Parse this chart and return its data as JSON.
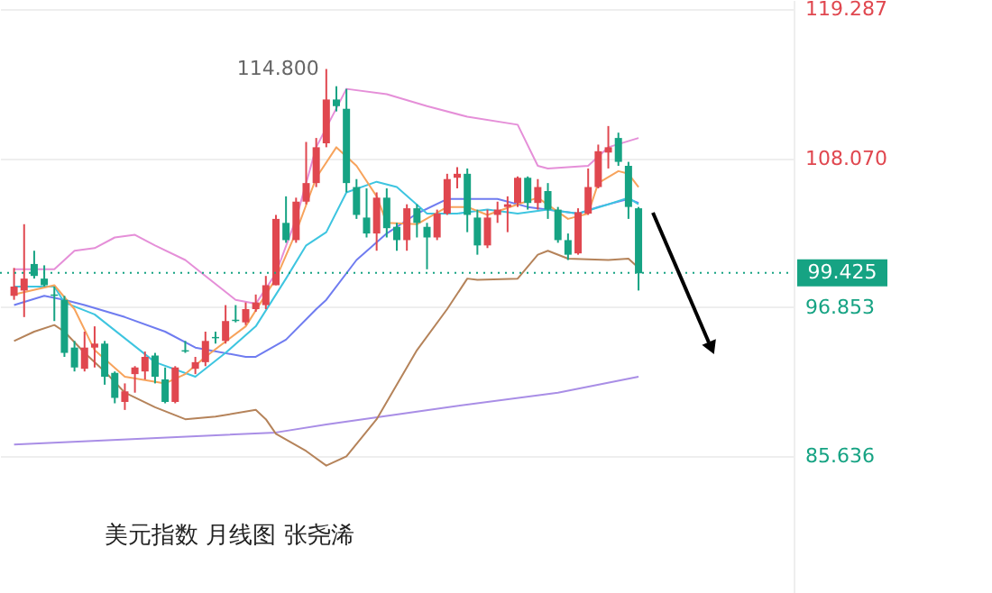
{
  "chart_data": {
    "type": "candlestick",
    "title": "美元指数 月线图 张尧浠",
    "categories": [
      null,
      null,
      null,
      null,
      null,
      null,
      null,
      null,
      null,
      null,
      null,
      null,
      null,
      null,
      null,
      null,
      null,
      null,
      null,
      null,
      null,
      null,
      null,
      null,
      null,
      null,
      null,
      null,
      null,
      null,
      null,
      null,
      null,
      null,
      null,
      null,
      null,
      null,
      null,
      null,
      null,
      null,
      null,
      null,
      null,
      null,
      null,
      null,
      null,
      null,
      null,
      null,
      null,
      null,
      null,
      null,
      null,
      null,
      null,
      null,
      null,
      null,
      null,
      null,
      null,
      null,
      null,
      null,
      null,
      null,
      null,
      null,
      null,
      null,
      null,
      null,
      null
    ],
    "ohlc": [
      [
        97.7,
        99.8,
        97.4,
        98.4
      ],
      [
        98.1,
        103.1,
        96.1,
        99.0
      ],
      [
        100.1,
        101.1,
        99.0,
        99.2
      ],
      [
        99.0,
        100.0,
        98.4,
        98.5
      ],
      [
        97.8,
        98.4,
        95.8,
        97.7
      ],
      [
        97.4,
        97.7,
        93.1,
        93.4
      ],
      [
        93.8,
        94.3,
        92.0,
        92.3
      ],
      [
        92.2,
        95.0,
        92.0,
        93.8
      ],
      [
        93.8,
        95.4,
        92.3,
        94.1
      ],
      [
        94.1,
        94.3,
        91.0,
        91.6
      ],
      [
        91.9,
        92.0,
        89.6,
        90.0
      ],
      [
        89.7,
        91.1,
        89.1,
        90.5
      ],
      [
        91.8,
        92.4,
        90.4,
        92.3
      ],
      [
        92.0,
        93.5,
        91.4,
        93.1
      ],
      [
        93.2,
        93.4,
        91.1,
        91.6
      ],
      [
        91.4,
        92.3,
        89.6,
        89.7
      ],
      [
        89.7,
        92.4,
        89.6,
        92.3
      ],
      [
        93.6,
        94.3,
        93.4,
        93.5
      ],
      [
        92.2,
        93.1,
        91.8,
        92.7
      ],
      [
        92.7,
        95.0,
        92.4,
        94.3
      ],
      [
        94.6,
        95.0,
        94.1,
        94.5
      ],
      [
        94.3,
        97.0,
        94.1,
        95.8
      ],
      [
        95.9,
        97.0,
        95.7,
        95.8
      ],
      [
        95.7,
        97.2,
        95.5,
        96.7
      ],
      [
        96.7,
        97.8,
        96.5,
        97.2
      ],
      [
        97.0,
        99.2,
        96.7,
        98.5
      ],
      [
        98.5,
        103.8,
        98.5,
        103.5
      ],
      [
        103.2,
        105.2,
        101.7,
        101.9
      ],
      [
        101.9,
        105.1,
        101.7,
        104.8
      ],
      [
        104.8,
        109.3,
        104.6,
        106.2
      ],
      [
        106.2,
        109.6,
        105.9,
        108.9
      ],
      [
        109.2,
        114.8,
        108.9,
        112.5
      ],
      [
        112.5,
        113.5,
        111.6,
        112.0
      ],
      [
        111.8,
        113.3,
        105.5,
        106.2
      ],
      [
        105.9,
        106.5,
        103.5,
        103.8
      ],
      [
        103.6,
        105.8,
        102.1,
        102.4
      ],
      [
        102.4,
        105.5,
        101.1,
        105.1
      ],
      [
        105.1,
        105.8,
        102.1,
        102.8
      ],
      [
        102.9,
        103.2,
        101.1,
        101.9
      ],
      [
        101.9,
        104.6,
        101.1,
        104.3
      ],
      [
        104.3,
        104.6,
        102.1,
        103.2
      ],
      [
        102.9,
        103.2,
        99.7,
        102.1
      ],
      [
        102.1,
        104.2,
        101.9,
        103.9
      ],
      [
        103.9,
        106.9,
        103.8,
        106.5
      ],
      [
        106.6,
        107.4,
        105.8,
        106.9
      ],
      [
        106.9,
        107.3,
        102.5,
        103.8
      ],
      [
        103.6,
        104.2,
        100.8,
        101.5
      ],
      [
        101.5,
        104.2,
        101.3,
        103.6
      ],
      [
        103.8,
        104.8,
        103.2,
        104.2
      ],
      [
        104.4,
        105.2,
        102.5,
        104.6
      ],
      [
        104.7,
        106.7,
        104.4,
        106.6
      ],
      [
        106.6,
        106.7,
        104.2,
        104.7
      ],
      [
        104.7,
        106.5,
        104.2,
        105.9
      ],
      [
        105.6,
        106.2,
        103.5,
        104.2
      ],
      [
        104.2,
        104.4,
        101.7,
        101.9
      ],
      [
        101.9,
        102.4,
        100.4,
        100.8
      ],
      [
        100.9,
        104.3,
        100.8,
        104.0
      ],
      [
        103.9,
        107.3,
        103.8,
        105.9
      ],
      [
        105.9,
        109.1,
        105.8,
        108.6
      ],
      [
        108.5,
        110.5,
        107.3,
        108.9
      ],
      [
        109.6,
        110.0,
        107.5,
        107.8
      ],
      [
        107.5,
        107.8,
        103.5,
        104.4
      ],
      [
        104.3,
        104.4,
        98.1,
        99.4
      ],
      null,
      null,
      null,
      null,
      null,
      null,
      null,
      null,
      null,
      null,
      null,
      null,
      null,
      null
    ],
    "colors": [
      "#e0474f",
      "#e0474f",
      "#16a383",
      "#16a383",
      "#16a383",
      "#16a383",
      "#16a383",
      "#e0474f",
      "#e0474f",
      "#16a383",
      "#16a383",
      "#e0474f",
      "#e0474f",
      "#e0474f",
      "#16a383",
      "#16a383",
      "#e0474f",
      "#16a383",
      "#e0474f",
      "#e0474f",
      "#16a383",
      "#e0474f",
      "#16a383",
      "#e0474f",
      "#e0474f",
      "#e0474f",
      "#e0474f",
      "#16a383",
      "#e0474f",
      "#e0474f",
      "#e0474f",
      "#e0474f",
      "#16a383",
      "#16a383",
      "#16a383",
      "#16a383",
      "#e0474f",
      "#16a383",
      "#16a383",
      "#e0474f",
      "#16a383",
      "#16a383",
      "#e0474f",
      "#e0474f",
      "#e0474f",
      "#16a383",
      "#16a383",
      "#e0474f",
      "#e0474f",
      "#e0474f",
      "#e0474f",
      "#16a383",
      "#e0474f",
      "#16a383",
      "#16a383",
      "#16a383",
      "#e0474f",
      "#e0474f",
      "#e0474f",
      "#e0474f",
      "#16a383",
      "#16a383",
      "#16a383",
      null,
      null,
      null,
      null,
      null,
      null,
      null,
      null,
      null,
      null,
      null,
      null,
      null,
      null
    ],
    "series": [
      {
        "type": "line",
        "color": "#a98ee6",
        "values": [
          86.5,
          null,
          null,
          null,
          null,
          null,
          null,
          null,
          null,
          null,
          null,
          null,
          null,
          null,
          null,
          null,
          null,
          null,
          null,
          null,
          null,
          null,
          null,
          null,
          null,
          null,
          87.4,
          null,
          null,
          null,
          null,
          88.0,
          null,
          null,
          null,
          null,
          null,
          null,
          null,
          null,
          null,
          null,
          null,
          89.3,
          null,
          null,
          null,
          null,
          null,
          null,
          null,
          null,
          null,
          null,
          90.4,
          null,
          null,
          null,
          null,
          null,
          null,
          null,
          91.6,
          null,
          null,
          null,
          null,
          null,
          null,
          null,
          null,
          null,
          null,
          null,
          null,
          null,
          null
        ]
      },
      {
        "type": "line",
        "color": "#b5835a",
        "values": [
          94.3,
          null,
          95.0,
          null,
          95.5,
          95.0,
          null,
          93.4,
          null,
          92.0,
          null,
          90.4,
          null,
          null,
          89.3,
          null,
          null,
          88.4,
          null,
          null,
          88.6,
          null,
          null,
          null,
          89.1,
          88.4,
          87.3,
          null,
          null,
          86.0,
          null,
          84.9,
          null,
          85.6,
          null,
          null,
          88.4,
          null,
          null,
          null,
          93.6,
          null,
          null,
          96.7,
          null,
          99.0,
          98.9,
          null,
          null,
          null,
          99.0,
          null,
          100.8,
          101.1,
          null,
          100.5,
          null,
          null,
          null,
          100.4,
          null,
          100.5,
          99.8,
          null,
          null,
          null,
          null,
          null,
          null,
          null,
          null,
          null,
          null,
          null,
          null,
          null,
          null
        ]
      },
      {
        "type": "line",
        "color": "#e58fd8",
        "values": [
          99.7,
          null,
          null,
          null,
          99.7,
          null,
          101.1,
          null,
          101.3,
          null,
          102.1,
          null,
          102.3,
          null,
          101.5,
          null,
          null,
          100.4,
          null,
          99.2,
          null,
          null,
          97.4,
          null,
          97.1,
          null,
          99.4,
          null,
          103.5,
          null,
          108.9,
          null,
          null,
          113.3,
          null,
          null,
          null,
          112.9,
          null,
          null,
          null,
          112.0,
          null,
          null,
          null,
          111.2,
          null,
          null,
          null,
          null,
          110.6,
          null,
          107.5,
          107.3,
          null,
          null,
          null,
          107.5,
          null,
          108.9,
          null,
          null,
          109.6,
          null,
          null,
          null,
          null,
          null,
          null,
          null,
          null,
          null,
          null,
          null,
          null,
          null,
          null
        ]
      },
      {
        "type": "line",
        "color": "#6f7cf0",
        "values": [
          97.0,
          null,
          null,
          97.7,
          null,
          97.4,
          null,
          97.0,
          null,
          null,
          null,
          96.1,
          null,
          null,
          null,
          95.0,
          null,
          null,
          93.8,
          null,
          null,
          null,
          null,
          93.1,
          93.1,
          null,
          null,
          94.4,
          null,
          null,
          96.7,
          97.4,
          null,
          null,
          100.4,
          null,
          null,
          102.4,
          null,
          null,
          103.9,
          null,
          null,
          105.0,
          null,
          null,
          null,
          null,
          105.0,
          null,
          null,
          104.4,
          null,
          null,
          null,
          null,
          103.9,
          null,
          104.4,
          null,
          null,
          105.0,
          104.7,
          null,
          null,
          null,
          null,
          null,
          null,
          null,
          null,
          null,
          null,
          null,
          null,
          null,
          null
        ]
      },
      {
        "type": "line",
        "color": "#3ec5e0",
        "values": [
          98.4,
          null,
          null,
          null,
          98.4,
          97.2,
          null,
          null,
          96.3,
          null,
          null,
          94.5,
          null,
          null,
          92.7,
          null,
          null,
          null,
          91.6,
          null,
          null,
          93.4,
          null,
          null,
          95.4,
          null,
          null,
          99.0,
          null,
          101.5,
          null,
          102.5,
          null,
          105.5,
          null,
          null,
          106.3,
          null,
          105.9,
          null,
          null,
          103.9,
          null,
          null,
          103.9,
          null,
          null,
          104.2,
          null,
          null,
          103.9,
          null,
          null,
          104.2,
          null,
          null,
          103.9,
          null,
          null,
          104.6,
          null,
          105.1,
          104.6,
          null,
          null,
          null,
          null,
          null,
          null,
          null,
          null,
          null,
          null,
          null,
          null,
          null,
          null
        ]
      },
      {
        "type": "line",
        "color": "#f7a35c",
        "values": [
          97.8,
          null,
          null,
          null,
          98.5,
          null,
          96.7,
          null,
          93.6,
          null,
          null,
          91.6,
          null,
          null,
          null,
          91.1,
          null,
          91.8,
          null,
          93.1,
          null,
          null,
          null,
          95.4,
          null,
          null,
          99.0,
          null,
          102.5,
          null,
          106.6,
          null,
          108.9,
          null,
          107.5,
          null,
          105.2,
          103.2,
          null,
          null,
          103.1,
          null,
          null,
          104.4,
          null,
          104.4,
          null,
          103.8,
          null,
          null,
          104.6,
          null,
          105.1,
          null,
          null,
          103.5,
          null,
          103.9,
          106.2,
          null,
          107.1,
          106.9,
          105.9,
          null,
          null,
          null,
          null,
          null,
          null,
          null,
          null,
          null,
          null,
          null,
          null,
          null,
          null
        ]
      }
    ],
    "ylim": [
      75.3,
      120.0
    ],
    "yticks": [
      {
        "value": 85.636,
        "label": "85.636"
      },
      {
        "value": 96.853,
        "label": "96.853"
      },
      {
        "value": 108.07,
        "label": "108.070"
      },
      {
        "value": 119.287,
        "label": "119.287"
      }
    ],
    "ref_lines": [
      {
        "axis": "y",
        "value": 99.425,
        "label": "99.425",
        "color": "#16a383",
        "line_style": "dotted"
      }
    ],
    "annotations": [
      "114.800"
    ],
    "grid": "y",
    "line_style": "solid",
    "marker": "none"
  }
}
